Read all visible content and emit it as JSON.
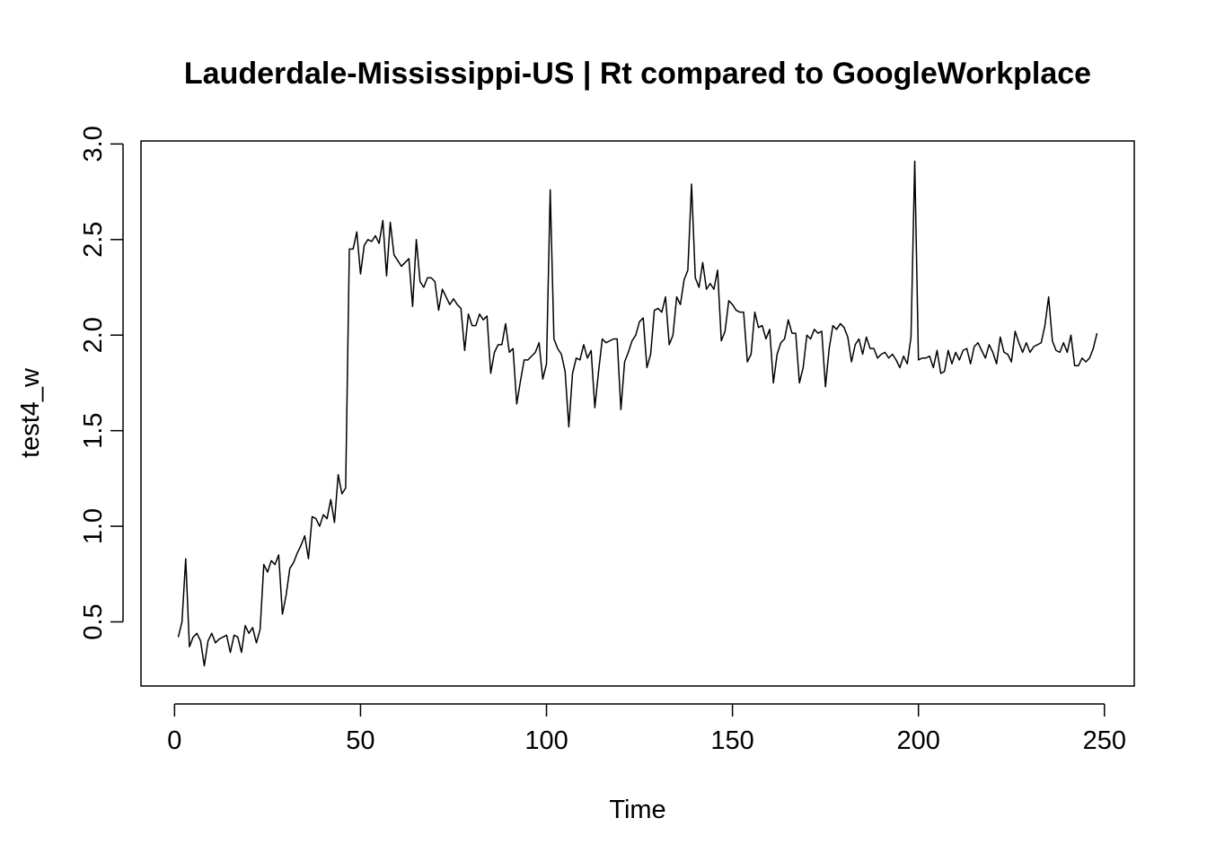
{
  "chart_data": {
    "type": "line",
    "title": "Lauderdale-Mississippi-US | Rt compared to GoogleWorkplace",
    "xlabel": "Time",
    "ylabel": "test4_w",
    "xlim": [
      1,
      248
    ],
    "ylim": [
      0.27,
      2.91
    ],
    "x_ticks": [
      0,
      50,
      100,
      150,
      200,
      250
    ],
    "x_tick_labels": [
      "0",
      "50",
      "100",
      "150",
      "200",
      "250"
    ],
    "y_ticks": [
      0.5,
      1.0,
      1.5,
      2.0,
      2.5,
      3.0
    ],
    "y_tick_labels": [
      "0.5",
      "1.0",
      "1.5",
      "2.0",
      "2.5",
      "3.0"
    ],
    "grid": false,
    "series": [
      {
        "x_start": 1,
        "x_step": 1,
        "values": [
          0.42,
          0.5,
          0.83,
          0.37,
          0.42,
          0.44,
          0.4,
          0.27,
          0.4,
          0.44,
          0.39,
          0.41,
          0.42,
          0.43,
          0.34,
          0.43,
          0.42,
          0.34,
          0.48,
          0.44,
          0.47,
          0.39,
          0.46,
          0.8,
          0.76,
          0.82,
          0.8,
          0.85,
          0.54,
          0.64,
          0.78,
          0.81,
          0.86,
          0.9,
          0.95,
          0.83,
          1.05,
          1.04,
          1.0,
          1.06,
          1.04,
          1.14,
          1.02,
          1.27,
          1.17,
          1.2,
          2.45,
          2.45,
          2.54,
          2.32,
          2.47,
          2.5,
          2.49,
          2.52,
          2.48,
          2.6,
          2.31,
          2.59,
          2.42,
          2.39,
          2.36,
          2.38,
          2.4,
          2.15,
          2.5,
          2.28,
          2.25,
          2.3,
          2.3,
          2.28,
          2.13,
          2.24,
          2.2,
          2.16,
          2.19,
          2.16,
          2.14,
          1.92,
          2.11,
          2.05,
          2.05,
          2.11,
          2.08,
          2.1,
          1.8,
          1.91,
          1.95,
          1.95,
          2.06,
          1.91,
          1.93,
          1.64,
          1.76,
          1.87,
          1.87,
          1.89,
          1.91,
          1.96,
          1.77,
          1.85,
          2.76,
          1.98,
          1.93,
          1.9,
          1.81,
          1.52,
          1.8,
          1.88,
          1.87,
          1.95,
          1.88,
          1.92,
          1.62,
          1.81,
          1.98,
          1.96,
          1.97,
          1.98,
          1.98,
          1.61,
          1.86,
          1.91,
          1.97,
          2.0,
          2.07,
          2.09,
          1.83,
          1.9,
          2.13,
          2.14,
          2.12,
          2.2,
          1.95,
          2.0,
          2.2,
          2.16,
          2.29,
          2.34,
          2.79,
          2.3,
          2.25,
          2.38,
          2.24,
          2.27,
          2.24,
          2.34,
          1.97,
          2.02,
          2.18,
          2.16,
          2.13,
          2.12,
          2.12,
          1.86,
          1.9,
          2.12,
          2.04,
          2.05,
          1.98,
          2.03,
          1.75,
          1.9,
          1.96,
          1.98,
          2.08,
          2.01,
          2.01,
          1.75,
          1.83,
          2.0,
          1.98,
          2.03,
          2.01,
          2.02,
          1.73,
          1.93,
          2.05,
          2.03,
          2.06,
          2.04,
          1.99,
          1.86,
          1.95,
          1.98,
          1.9,
          1.99,
          1.93,
          1.93,
          1.88,
          1.9,
          1.91,
          1.88,
          1.9,
          1.87,
          1.83,
          1.89,
          1.85,
          1.99,
          2.91,
          1.87,
          1.88,
          1.88,
          1.89,
          1.83,
          1.92,
          1.8,
          1.81,
          1.92,
          1.85,
          1.91,
          1.87,
          1.92,
          1.93,
          1.85,
          1.94,
          1.96,
          1.92,
          1.88,
          1.95,
          1.91,
          1.85,
          1.99,
          1.91,
          1.9,
          1.86,
          2.02,
          1.96,
          1.91,
          1.96,
          1.91,
          1.94,
          1.95,
          1.96,
          2.05,
          2.2,
          1.97,
          1.92,
          1.91,
          1.96,
          1.91,
          2.0,
          1.84,
          1.84,
          1.88,
          1.86,
          1.88,
          1.93,
          2.01
        ]
      }
    ]
  }
}
